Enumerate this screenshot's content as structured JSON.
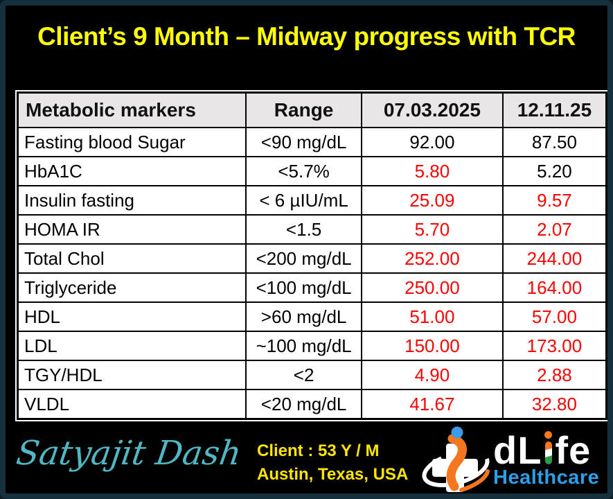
{
  "page": {
    "title": "Client’s 9 Month – Midway progress with TCR"
  },
  "colors": {
    "background": "#000000",
    "frame_border": "#17303E",
    "title_yellow": "#FFFF00",
    "alert_red": "#FF0000",
    "table_header_fill": "#E8E6E6",
    "table_text": "#000000",
    "signature_teal": "#4FB8C4",
    "client_yellow": "#FFE600",
    "brand_white": "#FFFFFF",
    "healthcare_blue": "#2B9FE8",
    "logo_orange": "#F4761F",
    "logo_head_blue": "#3D9BE9",
    "flag_green": "#2E9B47"
  },
  "table": {
    "headers": [
      "Metabolic markers",
      "Range",
      "07.03.2025",
      "12.11.25"
    ],
    "rows": [
      {
        "marker": "Fasting blood Sugar",
        "range": "<90 mg/dL",
        "d1": "92.00",
        "d1_alert": false,
        "d2": "87.50",
        "d2_alert": false
      },
      {
        "marker": "HbA1C",
        "range": "<5.7%",
        "d1": "5.80",
        "d1_alert": true,
        "d2": "5.20",
        "d2_alert": false
      },
      {
        "marker": "Insulin fasting",
        "range": "< 6 µIU/mL",
        "d1": "25.09",
        "d1_alert": true,
        "d2": "9.57",
        "d2_alert": true
      },
      {
        "marker": "HOMA IR",
        "range": "<1.5",
        "d1": "5.70",
        "d1_alert": true,
        "d2": "2.07",
        "d2_alert": true
      },
      {
        "marker": "Total Chol",
        "range": "<200 mg/dL",
        "d1": "252.00",
        "d1_alert": true,
        "d2": "244.00",
        "d2_alert": true
      },
      {
        "marker": "Triglyceride",
        "range": "<100 mg/dL",
        "d1": "250.00",
        "d1_alert": true,
        "d2": "164.00",
        "d2_alert": true
      },
      {
        "marker": "HDL",
        "range": ">60 mg/dL",
        "d1": "51.00",
        "d1_alert": true,
        "d2": "57.00",
        "d2_alert": true
      },
      {
        "marker": "LDL",
        "range": "~100 mg/dL",
        "d1": "150.00",
        "d1_alert": true,
        "d2": "173.00",
        "d2_alert": true
      },
      {
        "marker": "TGY/HDL",
        "range": "<2",
        "d1": "4.90",
        "d1_alert": true,
        "d2": "2.88",
        "d2_alert": true
      },
      {
        "marker": "VLDL",
        "range": "<20 mg/dL",
        "d1": "41.67",
        "d1_alert": true,
        "d2": "32.80",
        "d2_alert": true
      }
    ]
  },
  "footer": {
    "signature": "Satyajit Dash",
    "client_line1": "Client : 53 Y / M",
    "client_line2": "Austin, Texas, USA",
    "logo": {
      "brand_dl": "dL",
      "brand_fe": "fe",
      "subtitle": "Healthcare"
    }
  }
}
